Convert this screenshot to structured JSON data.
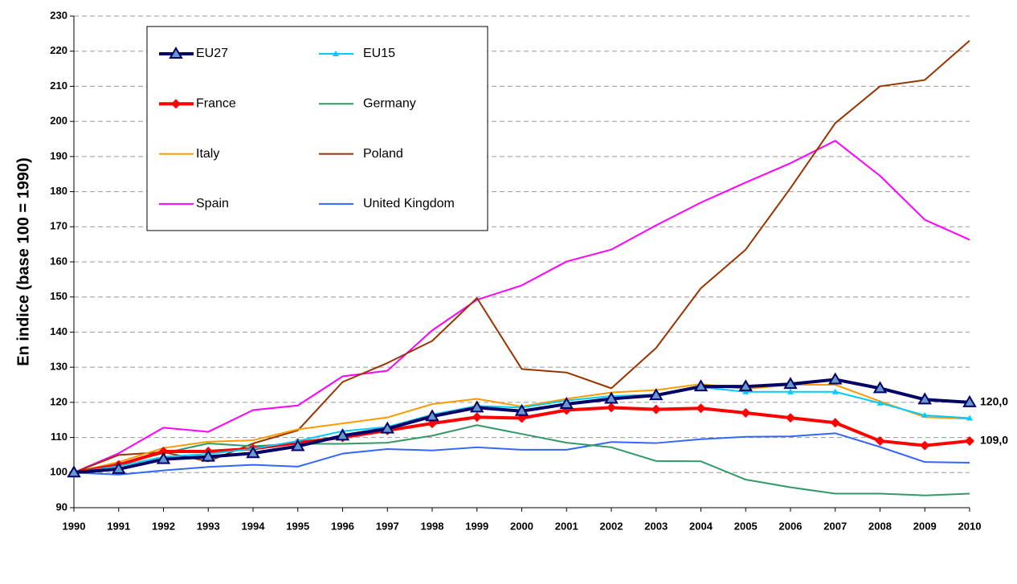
{
  "chart_data": {
    "type": "line",
    "y_label": "En indice (base 100 = 1990)",
    "categories": [
      "1990",
      "1991",
      "1992",
      "1993",
      "1994",
      "1995",
      "1996",
      "1997",
      "1998",
      "1999",
      "2000",
      "2001",
      "2002",
      "2003",
      "2004",
      "2005",
      "2006",
      "2007",
      "2008",
      "2009",
      "2010"
    ],
    "ylim": [
      90,
      230
    ],
    "yticks": [
      90,
      100,
      110,
      120,
      130,
      140,
      150,
      160,
      170,
      180,
      190,
      200,
      210,
      220,
      230
    ],
    "grid": true,
    "legend": "upper left",
    "series": [
      {
        "name": "EU27",
        "color": "#000066",
        "width": 4,
        "marker": "triangle",
        "values": [
          100,
          101,
          103.8,
          104.5,
          105.5,
          107.5,
          110.5,
          112.5,
          116,
          118.5,
          117.5,
          119.5,
          121,
          122,
          124.5,
          124.5,
          125.2,
          126.5,
          124,
          120.8,
          120.0
        ],
        "value_labels": [
          null,
          null,
          null,
          null,
          null,
          null,
          null,
          null,
          null,
          null,
          null,
          null,
          null,
          null,
          null,
          null,
          null,
          null,
          null,
          null,
          "120,0"
        ]
      },
      {
        "name": "EU15",
        "color": "#00ccff",
        "width": 2,
        "marker": "small-triangle",
        "values": [
          100,
          101.8,
          104.5,
          105.3,
          106.8,
          109,
          111.8,
          113,
          116.5,
          119,
          118.5,
          120.5,
          121.8,
          122.2,
          124.3,
          123,
          123,
          123,
          119.8,
          116.3,
          115.5
        ]
      },
      {
        "name": "France",
        "color": "#ff0000",
        "width": 4,
        "marker": "diamond",
        "values": [
          100,
          102.2,
          106,
          106,
          106.8,
          108.5,
          110,
          112,
          114,
          115.8,
          115.5,
          117.8,
          118.5,
          118,
          118.3,
          117,
          115.6,
          114.2,
          109,
          107.7,
          109.0
        ],
        "value_labels": [
          null,
          null,
          null,
          null,
          null,
          null,
          null,
          null,
          null,
          null,
          null,
          null,
          null,
          null,
          null,
          null,
          null,
          null,
          null,
          null,
          "109,0"
        ]
      },
      {
        "name": "Germany",
        "color": "#339966",
        "width": 2,
        "marker": "none",
        "values": [
          100,
          102.5,
          105.5,
          108.3,
          107.5,
          108.2,
          108.2,
          108.5,
          110.5,
          113.5,
          111,
          108.5,
          107.2,
          103.3,
          103.2,
          98,
          95.8,
          94,
          94,
          93.5,
          94
        ]
      },
      {
        "name": "Italy",
        "color": "#ff9900",
        "width": 2,
        "marker": "none",
        "values": [
          100,
          103,
          107,
          108.8,
          109.2,
          112.3,
          114,
          115.7,
          119.5,
          121,
          118.8,
          121,
          122.8,
          123.5,
          125.2,
          123.8,
          125,
          125,
          120.3,
          115.8,
          115.3
        ]
      },
      {
        "name": "Poland",
        "color": "#993300",
        "width": 2,
        "marker": "none",
        "values": [
          100,
          105,
          105.8,
          103.2,
          108.3,
          112,
          125.8,
          131.2,
          137.5,
          149.7,
          129.5,
          128.5,
          124,
          135.5,
          152.5,
          163.5,
          181,
          199.5,
          210,
          211.8,
          223
        ]
      },
      {
        "name": "Spain",
        "color": "#ff00ff",
        "width": 2,
        "marker": "none",
        "values": [
          100,
          105.5,
          112.8,
          111.6,
          117.8,
          119.1,
          127.4,
          129,
          140.5,
          149.2,
          153.3,
          160.1,
          163.5,
          170.4,
          176.9,
          182.6,
          188.1,
          194.5,
          184.5,
          172,
          166.3
        ]
      },
      {
        "name": "United Kingdom",
        "color": "#3366ff",
        "width": 2,
        "marker": "none",
        "values": [
          100,
          99.4,
          100.6,
          101.6,
          102.2,
          101.7,
          105.4,
          106.7,
          106.3,
          107.2,
          106.5,
          106.5,
          108.7,
          108.4,
          109.5,
          110.2,
          110.3,
          111.2,
          107.3,
          103,
          102.8
        ]
      }
    ]
  }
}
